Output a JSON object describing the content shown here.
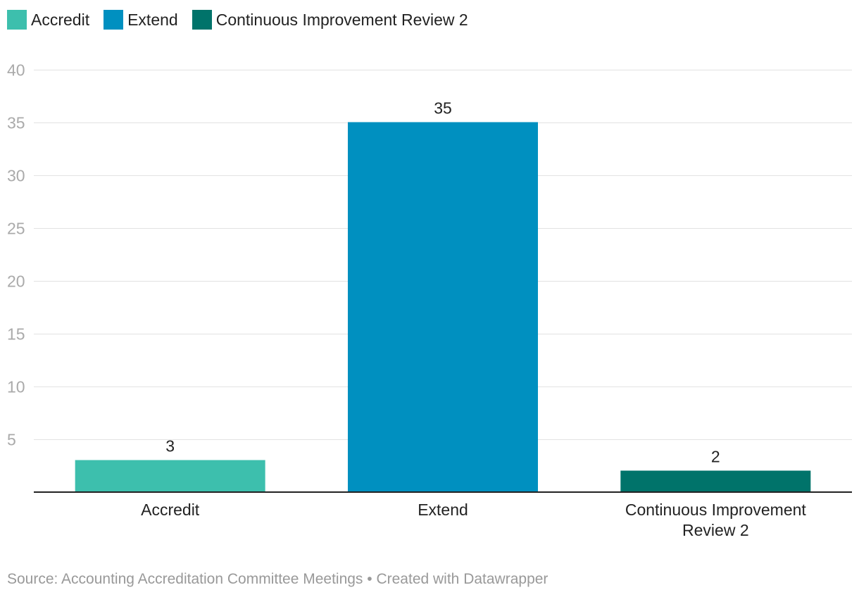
{
  "legend": [
    {
      "label": "Accredit",
      "color": "#3dbfad"
    },
    {
      "label": "Extend",
      "color": "#0090c0"
    },
    {
      "label": "Continuous Improvement Review 2",
      "color": "#00736a"
    }
  ],
  "chart_data": {
    "type": "bar",
    "categories": [
      "Accredit",
      "Extend",
      "Continuous Improvement Review 2"
    ],
    "category_label_lines": [
      [
        "Accredit"
      ],
      [
        "Extend"
      ],
      [
        "Continuous Improvement",
        "Review 2"
      ]
    ],
    "values": [
      3,
      35,
      2
    ],
    "value_labels": [
      "3",
      "35",
      "2"
    ],
    "colors": [
      "#3dbfad",
      "#0090c0",
      "#00736a"
    ],
    "ylim": [
      0,
      40
    ],
    "yticks": [
      5,
      10,
      15,
      20,
      25,
      30,
      35,
      40
    ],
    "grid": true,
    "legend_position": "top-left"
  },
  "footer": {
    "source": "Source: Accounting Accreditation Committee Meetings",
    "separator": " • ",
    "credit": "Created with Datawrapper"
  }
}
